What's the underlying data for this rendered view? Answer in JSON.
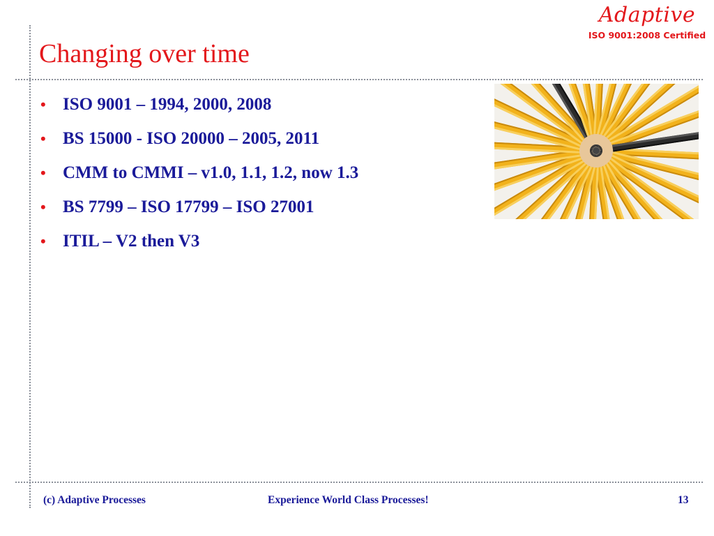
{
  "slide": {
    "title": "Changing over time",
    "bullets": [
      "ISO 9001 – 1994, 2000, 2008",
      "BS 15000 - ISO 20000 – 2005, 2011",
      "CMM to CMMI – v1.0, 1.1, 1.2, now 1.3",
      "BS 7799 – ISO 17799 – ISO 27001",
      "ITIL – V2 then V3"
    ],
    "bullet_symbol": "•"
  },
  "logo": {
    "brand": "Adaptive",
    "tagline": "ISO 9001:2008 Certified"
  },
  "footer": {
    "copyright": "(c) Adaptive Processes",
    "slogan": "Experience World Class Processes!",
    "page_number": "13"
  },
  "image": {
    "subject": "pencils-in-circle-photo"
  },
  "colors": {
    "title": "#e3171b",
    "body_text": "#1a1a99",
    "bullet": "#e3171b",
    "divider": "#8a8f99",
    "pencil": "#f2b21b",
    "pencil_dark": "#2a2a2a"
  }
}
